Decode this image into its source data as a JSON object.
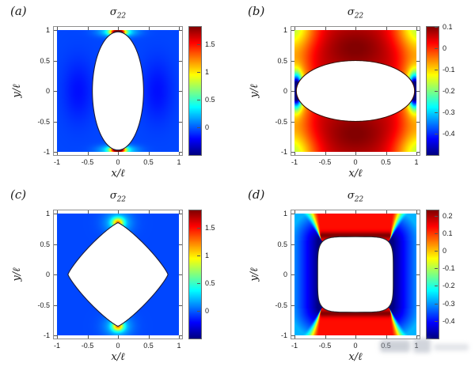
{
  "figure": {
    "background": "#ffffff",
    "colormap": "jet"
  },
  "chart_data": [
    {
      "id": "a",
      "type": "heatmap",
      "panel": "(a)",
      "title": "σ22",
      "title_sigma": "σ",
      "title_sub": "22",
      "xlabel": "x/ℓ",
      "ylabel": "y/ℓ",
      "x_tick_vals": [
        -1,
        -0.5,
        0,
        0.5,
        1
      ],
      "x_tick_labels": [
        "-1",
        "-0.5",
        "0",
        "0.5",
        "1"
      ],
      "y_tick_vals": [
        1,
        0.5,
        0,
        -0.5,
        -1
      ],
      "y_tick_labels": [
        "1",
        "0.5",
        "0",
        "-0.5",
        "-1"
      ],
      "axis_limits": [
        -1.07,
        1.07
      ],
      "data_extent": [
        -1,
        1
      ],
      "colormap": "jet",
      "clim": [
        -0.5,
        1.82
      ],
      "cb_tick_vals": [
        1.5,
        1,
        0.5,
        0
      ],
      "cb_tick_labels": [
        "1.5",
        "1",
        "0.5",
        "0"
      ],
      "hole": {
        "shape": "superellipse",
        "rx": 0.42,
        "ry": 0.97,
        "n": 2
      },
      "edge_color": "#1a1a38",
      "field": {
        "kind": "gauss",
        "base": -0.05,
        "terms": [
          {
            "q1": "x",
            "c1": 0,
            "s1": 0.115,
            "q2": "ay",
            "c2": 0.97,
            "s2": 0.05,
            "amp": 1.9
          },
          {
            "q1": "x",
            "c1": 0,
            "s1": 0.28,
            "q2": "ay",
            "c2": 0.97,
            "s2": 0.08,
            "amp": 0.55
          },
          {
            "q1": "ax",
            "c1": 0.65,
            "s1": 0.25,
            "q2": "y",
            "c2": 0,
            "s2": 0.5,
            "amp": -0.13
          }
        ]
      }
    },
    {
      "id": "b",
      "type": "heatmap",
      "panel": "(b)",
      "title": "σ22",
      "title_sigma": "σ",
      "title_sub": "22",
      "xlabel": "x/ℓ",
      "ylabel": "y/ℓ",
      "x_tick_vals": [
        -1,
        -0.5,
        0,
        0.5,
        1
      ],
      "x_tick_labels": [
        "-1",
        "-0.5",
        "0",
        "0.5",
        "1"
      ],
      "y_tick_vals": [
        1,
        0.5,
        0,
        -0.5,
        -1
      ],
      "y_tick_labels": [
        "1",
        "0.5",
        "0",
        "-0.5",
        "-1"
      ],
      "axis_limits": [
        -1.07,
        1.07
      ],
      "data_extent": [
        -1,
        1
      ],
      "colormap": "jet",
      "clim": [
        -0.5,
        0.1
      ],
      "cb_tick_vals": [
        0.1,
        0,
        -0.1,
        -0.2,
        -0.3,
        -0.4
      ],
      "cb_tick_labels": [
        "0.1",
        "0",
        "-0.1",
        "-0.2",
        "-0.3",
        "-0.4"
      ],
      "hole": {
        "shape": "superellipse",
        "rx": 0.97,
        "ry": 0.5,
        "n": 2
      },
      "edge_color": "#3c0b04",
      "field": {
        "kind": "gauss",
        "base": 0.055,
        "terms": [
          {
            "q1": "x",
            "c1": 0,
            "s1": 0.5,
            "q2": "ay",
            "c2": 0.7,
            "s2": 0.33,
            "amp": 0.045
          },
          {
            "q1": "ax",
            "c1": 1.07,
            "s1": 0.4,
            "q2": "ay",
            "c2": 1.07,
            "s2": 0.4,
            "amp": -0.22
          },
          {
            "q1": "ax",
            "c1": 1.0,
            "s1": 0.28,
            "q2": "y",
            "c2": 0,
            "s2": 0.6,
            "amp": -0.2
          },
          {
            "q1": "ax",
            "c1": 0.97,
            "s1": 0.09,
            "q2": "y",
            "c2": 0,
            "s2": 0.24,
            "amp": -0.55
          }
        ]
      }
    },
    {
      "id": "c",
      "type": "heatmap",
      "panel": "(c)",
      "title": "σ22",
      "title_sigma": "σ",
      "title_sub": "22",
      "xlabel": "x/ℓ",
      "ylabel": "y/ℓ",
      "x_tick_vals": [
        -1,
        -0.5,
        0,
        0.5,
        1
      ],
      "x_tick_labels": [
        "-1",
        "-0.5",
        "0",
        "0.5",
        "1"
      ],
      "y_tick_vals": [
        1,
        0.5,
        0,
        -0.5,
        -1
      ],
      "y_tick_labels": [
        "1",
        "0.5",
        "0",
        "-0.5",
        "-1"
      ],
      "axis_limits": [
        -1.07,
        1.07
      ],
      "data_extent": [
        -1,
        1
      ],
      "colormap": "jet",
      "clim": [
        -0.5,
        1.82
      ],
      "cb_tick_vals": [
        1.5,
        1,
        0.5,
        0
      ],
      "cb_tick_labels": [
        "1.5",
        "1",
        "0.5",
        "0"
      ],
      "hole": {
        "shape": "superellipse",
        "rx": 0.82,
        "ry": 0.85,
        "n": 1.18
      },
      "edge_color": "#1a1a38",
      "field": {
        "kind": "gauss",
        "base": -0.05,
        "terms": [
          {
            "q1": "x",
            "c1": 0,
            "s1": 0.09,
            "q2": "ay",
            "c2": 0.85,
            "s2": 0.075,
            "amp": 0.95
          },
          {
            "q1": "x",
            "c1": 0,
            "s1": 0.22,
            "q2": "ay",
            "c2": 0.85,
            "s2": 0.18,
            "amp": 0.35
          }
        ]
      }
    },
    {
      "id": "d",
      "type": "heatmap",
      "panel": "(d)",
      "title": "σ22",
      "title_sigma": "σ",
      "title_sub": "22",
      "xlabel": "x/ℓ",
      "ylabel": "y/ℓ",
      "x_tick_vals": [
        -1,
        -0.5,
        0,
        0.5,
        1
      ],
      "x_tick_labels": [
        "-1",
        "-0.5",
        "0",
        "0.5",
        "1"
      ],
      "y_tick_vals": [
        1,
        0.5,
        0,
        -0.5,
        -1
      ],
      "y_tick_labels": [
        "1",
        "0.5",
        "0",
        "-0.5",
        "-1"
      ],
      "axis_limits": [
        -1.07,
        1.07
      ],
      "data_extent": [
        -1,
        1
      ],
      "colormap": "jet",
      "clim": [
        -0.5,
        0.23
      ],
      "cb_tick_vals": [
        0.2,
        0.1,
        0,
        -0.1,
        -0.2,
        -0.3,
        -0.4
      ],
      "cb_tick_labels": [
        "0.2",
        "0.1",
        "0",
        "-0.1",
        "-0.2",
        "-0.3",
        "-0.4"
      ],
      "hole": {
        "shape": "superellipse",
        "rx": 0.62,
        "ry": 0.62,
        "n": 5
      },
      "edge_color": "#26262e",
      "field": {
        "kind": "fan",
        "c": 0.56,
        "hw": 0.62,
        "vs0": -0.5,
        "vsAmp": 0.22,
        "vsScale": 0.45,
        "vt0": 0.13,
        "rimAmp": 0.1,
        "rimSigma": 0.06,
        "fan0": 0.6,
        "fan1": 0.95,
        "dOff": 0.05
      }
    }
  ]
}
